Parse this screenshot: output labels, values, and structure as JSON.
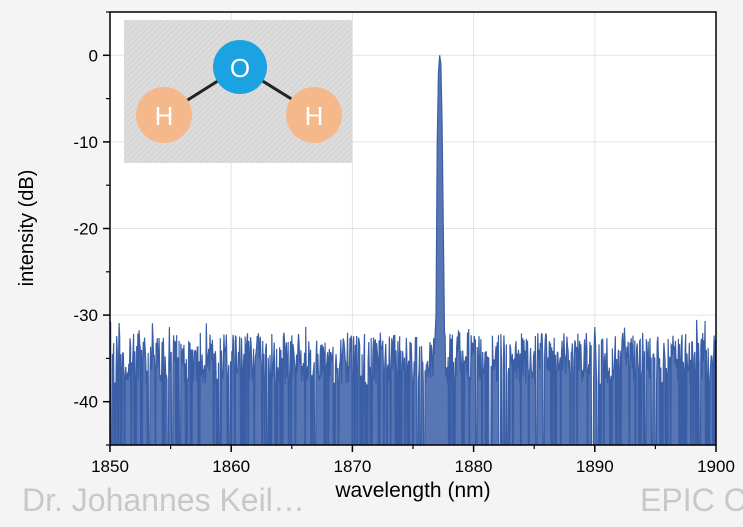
{
  "chart_data": {
    "type": "line",
    "title": "",
    "xlabel": "wavelength (nm)",
    "ylabel": "intensity (dB)",
    "xlim": [
      1850,
      1900
    ],
    "ylim": [
      -45,
      5
    ],
    "x_ticks": [
      "1850",
      "1860",
      "1870",
      "1880",
      "1890",
      "1900"
    ],
    "y_ticks": [
      "0",
      "-10",
      "-20",
      "-30",
      "-40"
    ],
    "grid": true,
    "legend": "none",
    "line_color": "#3a5ea6",
    "noise_floor_db": [
      -38,
      -32
    ],
    "series": [
      {
        "x": [
          1850,
          1876.7,
          1876.9,
          1877.0,
          1877.1,
          1877.2,
          1877.3,
          1877.4,
          1877.6,
          1900
        ],
        "y": [
          -36,
          -36,
          -30,
          -10,
          -2,
          0,
          -1,
          -8,
          -32,
          -36
        ]
      }
    ]
  },
  "inset": {
    "name": "water molecule",
    "atoms": [
      {
        "label": "O",
        "color": "#1aa3e0"
      },
      {
        "label": "H",
        "color": "#f5b88a"
      },
      {
        "label": "H",
        "color": "#f5b88a"
      }
    ]
  },
  "footer": {
    "left_text": "Dr. Johannes Keil…",
    "right_text": "EPIC C…"
  }
}
